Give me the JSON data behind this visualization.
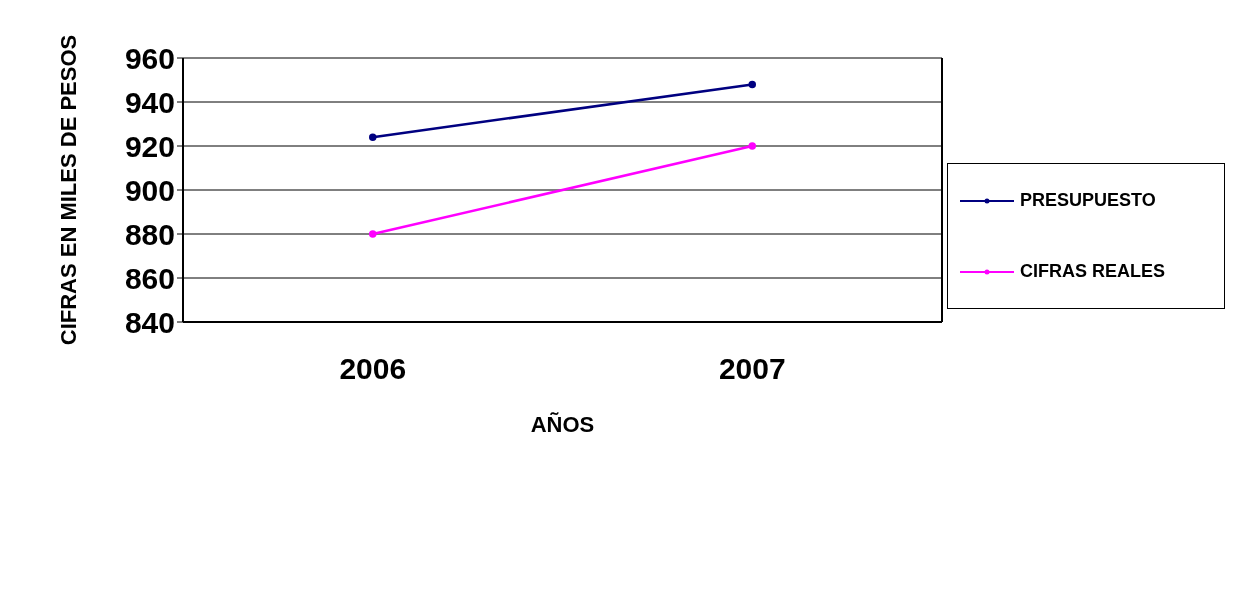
{
  "chart_data": {
    "type": "line",
    "xlabel": "AÑOS",
    "ylabel": "CIFRAS EN MILES DE PESOS",
    "categories": [
      "2006",
      "2007"
    ],
    "series": [
      {
        "name": "PRESUPUESTO",
        "color": "#000080",
        "values": [
          924,
          948
        ]
      },
      {
        "name": "CIFRAS REALES",
        "color": "#ff00ff",
        "values": [
          880,
          920
        ]
      }
    ],
    "ylim": [
      840,
      960
    ],
    "yticks": [
      840,
      860,
      880,
      900,
      920,
      940,
      960
    ],
    "grid": "y",
    "legend": "right",
    "marker": "circle",
    "line_style": "solid"
  }
}
